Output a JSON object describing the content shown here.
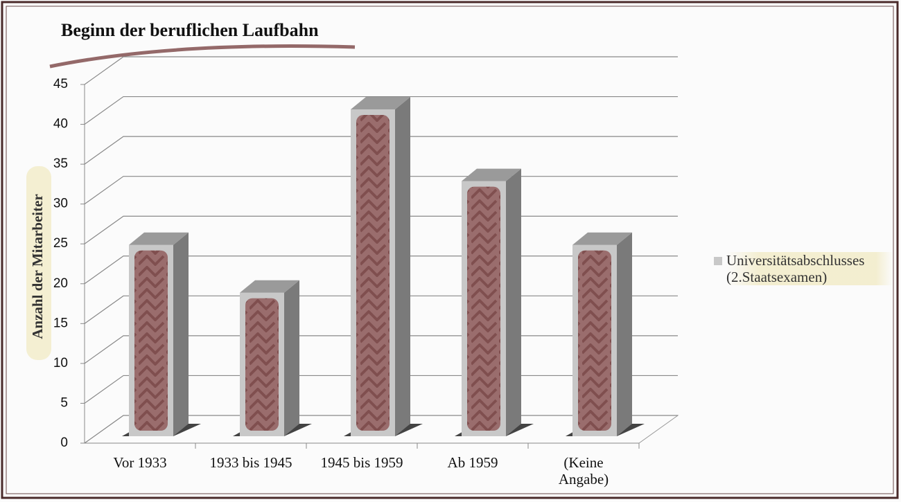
{
  "chart_data": {
    "type": "bar3d",
    "title": "Beginn der beruflichen Laufbahn",
    "y_label": "Anzahl der Mitarbeiter",
    "categories": [
      "Vor 1933",
      "1933 bis 1945",
      "1945 bis 1959",
      "Ab 1959",
      "(Keine Angabe)"
    ],
    "series": [
      {
        "name": "Universitätsabschlusses (2.Staatsexamen)",
        "color": "#c8c8c8",
        "values": [
          24,
          18,
          41,
          32,
          24
        ]
      }
    ],
    "ylim": [
      0,
      45
    ],
    "yticks": [
      0,
      5,
      10,
      15,
      20,
      25,
      30,
      35,
      40,
      45
    ],
    "grid": true
  }
}
